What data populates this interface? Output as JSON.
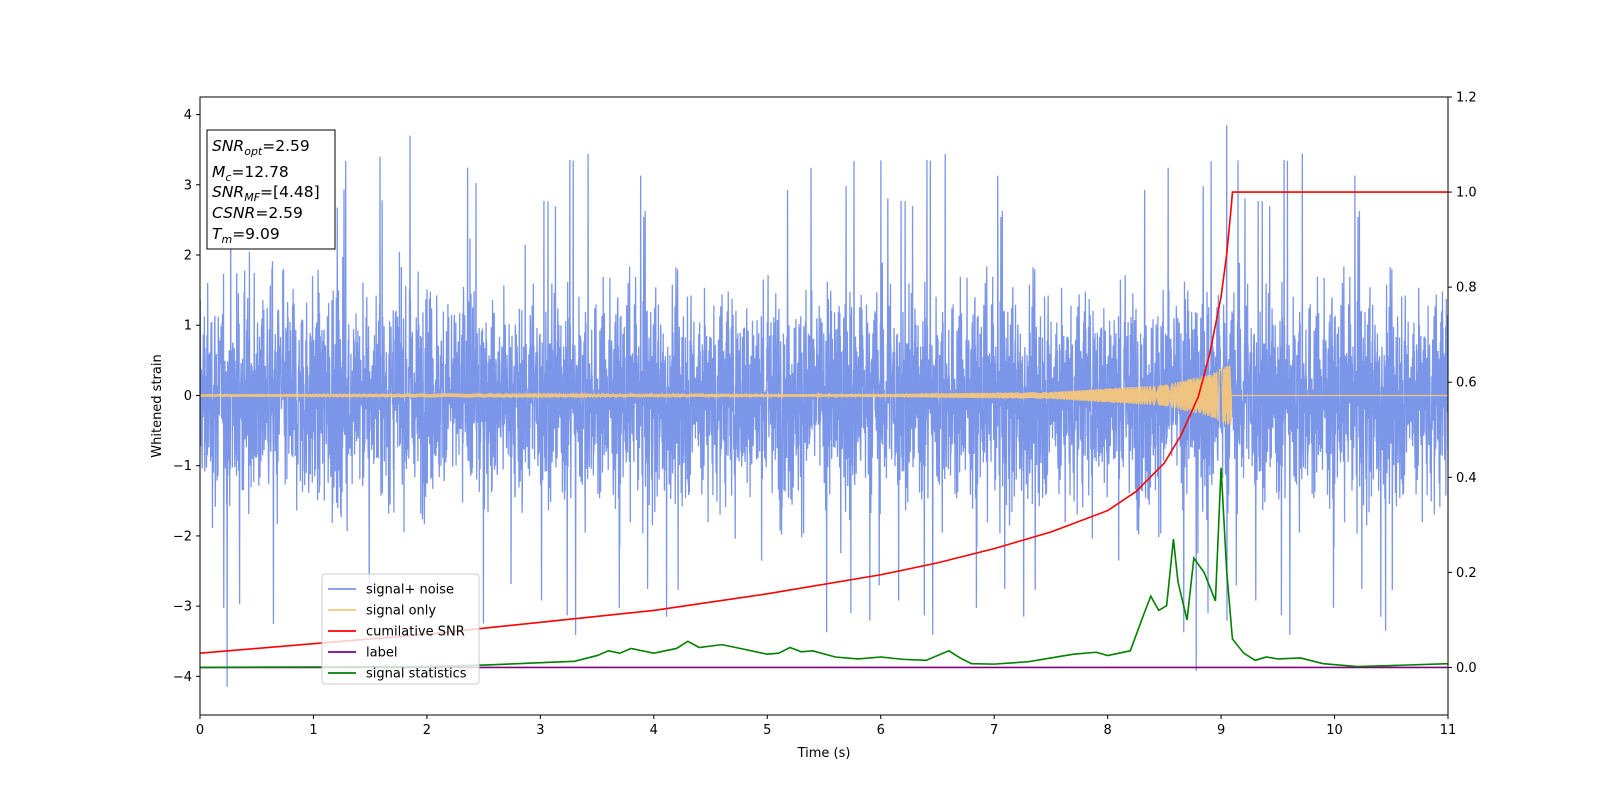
{
  "chart_data": {
    "type": "line",
    "xlabel": "Time (s)",
    "ylabel": "Whitened strain",
    "xlim": [
      0,
      11
    ],
    "ylim_left": [
      -4.55,
      4.25
    ],
    "ylim_right": [
      -0.1,
      1.2
    ],
    "x_ticks": [
      0,
      1,
      2,
      3,
      4,
      5,
      6,
      7,
      8,
      9,
      10,
      11
    ],
    "x_tick_labels": [
      "0",
      "1",
      "2",
      "3",
      "4",
      "5",
      "6",
      "7",
      "8",
      "9",
      "10",
      "11"
    ],
    "y_left_ticks": [
      -4,
      -3,
      -2,
      -1,
      0,
      1,
      2,
      3,
      4
    ],
    "y_left_tick_labels": [
      "−4",
      "−3",
      "−2",
      "−1",
      "0",
      "1",
      "2",
      "3",
      "4"
    ],
    "y_right_ticks": [
      0.0,
      0.2,
      0.4,
      0.6,
      0.8,
      1.0,
      1.2
    ],
    "y_right_tick_labels": [
      "0.0",
      "0.2",
      "0.4",
      "0.6",
      "0.8",
      "1.0",
      "1.2"
    ],
    "grid": false,
    "legend_placement": "lower-left",
    "info_box": [
      {
        "base": "SNR",
        "sub": "opt",
        "rest": "=2.59"
      },
      {
        "base": "M",
        "sub": "c",
        "rest": "=12.78"
      },
      {
        "base": "SNR",
        "sub": "MF",
        "rest": "=[4.48]"
      },
      {
        "base": "CSNR",
        "sub": "",
        "rest": "=2.59"
      },
      {
        "base": "T",
        "sub": "m",
        "rest": "=9.09"
      }
    ],
    "series": [
      {
        "name": "signal+ noise",
        "axis": "left",
        "color": "#7b96e8",
        "kind": "noise",
        "center": 0.0,
        "typical_range": [
          -2.3,
          2.3
        ],
        "extremes": [
          [
            0.24,
            -4.15
          ],
          [
            1.85,
            3.7
          ],
          [
            8.78,
            -3.92
          ],
          [
            9.05,
            3.85
          ],
          [
            10.45,
            -3.35
          ]
        ]
      },
      {
        "name": "signal only",
        "axis": "left",
        "color": "#f5c67a",
        "kind": "chirp",
        "amplitude_points": [
          [
            0,
            0.01
          ],
          [
            6,
            0.02
          ],
          [
            7.5,
            0.05
          ],
          [
            8.5,
            0.15
          ],
          [
            8.9,
            0.3
          ],
          [
            9.09,
            0.45
          ]
        ],
        "merger_time": 9.09
      },
      {
        "name": "cumilative SNR",
        "axis": "right",
        "color": "#ff0000",
        "x": [
          0,
          1,
          2,
          3,
          4,
          5,
          6,
          6.5,
          7,
          7.5,
          8,
          8.25,
          8.5,
          8.65,
          8.8,
          8.9,
          9.0,
          9.05,
          9.09,
          9.1,
          11
        ],
        "y": [
          0.03,
          0.05,
          0.07,
          0.095,
          0.12,
          0.155,
          0.195,
          0.22,
          0.25,
          0.285,
          0.33,
          0.37,
          0.43,
          0.49,
          0.57,
          0.66,
          0.78,
          0.87,
          0.97,
          1.0,
          1.0
        ]
      },
      {
        "name": "label",
        "axis": "right",
        "color": "#800080",
        "x": [
          0,
          11
        ],
        "y": [
          0,
          0
        ]
      },
      {
        "name": "signal statistics",
        "axis": "right",
        "color": "#008000",
        "x": [
          0,
          1,
          2,
          2.5,
          3,
          3.3,
          3.5,
          3.6,
          3.7,
          3.8,
          4.0,
          4.2,
          4.3,
          4.4,
          4.6,
          4.8,
          5.0,
          5.1,
          5.2,
          5.3,
          5.4,
          5.6,
          5.8,
          6.0,
          6.2,
          6.4,
          6.6,
          6.7,
          6.8,
          7.0,
          7.3,
          7.5,
          7.7,
          7.9,
          8.0,
          8.1,
          8.2,
          8.3,
          8.38,
          8.45,
          8.52,
          8.58,
          8.62,
          8.7,
          8.76,
          8.85,
          8.95,
          9.0,
          9.05,
          9.1,
          9.2,
          9.3,
          9.4,
          9.5,
          9.7,
          9.9,
          10.2,
          10.5,
          11
        ],
        "y": [
          0.0,
          0.001,
          0.002,
          0.005,
          0.01,
          0.013,
          0.025,
          0.035,
          0.03,
          0.04,
          0.03,
          0.04,
          0.055,
          0.042,
          0.048,
          0.038,
          0.028,
          0.03,
          0.042,
          0.033,
          0.035,
          0.022,
          0.018,
          0.022,
          0.017,
          0.015,
          0.035,
          0.02,
          0.008,
          0.007,
          0.012,
          0.02,
          0.028,
          0.032,
          0.025,
          0.03,
          0.035,
          0.1,
          0.15,
          0.12,
          0.13,
          0.27,
          0.18,
          0.1,
          0.23,
          0.2,
          0.14,
          0.42,
          0.2,
          0.06,
          0.03,
          0.015,
          0.022,
          0.018,
          0.02,
          0.008,
          0.002,
          0.004,
          0.008
        ]
      }
    ]
  }
}
